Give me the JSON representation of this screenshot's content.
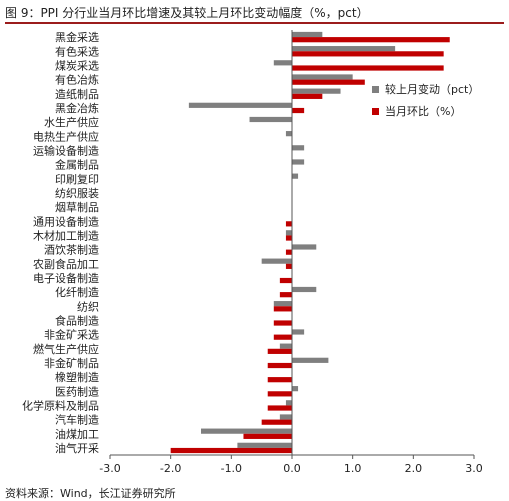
{
  "title": "图 9：PPI 分行业当月环比增速及其较上月环比变动幅度（%，pct）",
  "source": "资料来源：Wind，长江证券研究所",
  "colors": {
    "mom": "#c00000",
    "chg": "#7f7f7f",
    "title_rule": "#9b1c1c"
  },
  "chart_data": {
    "type": "bar",
    "orientation": "horizontal",
    "categories": [
      "黑金采选",
      "有色采选",
      "煤炭采选",
      "有色冶炼",
      "造纸制品",
      "黑金冶炼",
      "水生产供应",
      "电热生产供应",
      "运输设备制造",
      "金属制品",
      "印刷复印",
      "纺织服装",
      "烟草制品",
      "通用设备制造",
      "木材加工制造",
      "酒饮茶制造",
      "农副食品加工",
      "电子设备制造",
      "化纤制造",
      "纺织",
      "食品制造",
      "非金矿采选",
      "燃气生产供应",
      "非金矿制品",
      "橡塑制造",
      "医药制造",
      "化学原料及制品",
      "汽车制造",
      "油煤加工",
      "油气开采"
    ],
    "series": [
      {
        "name": "较上月变动（pct）",
        "values": [
          0.5,
          1.7,
          -0.3,
          1.0,
          0.8,
          -1.7,
          -0.7,
          -0.1,
          0.2,
          0.2,
          0.1,
          0,
          0,
          0,
          -0.1,
          0.4,
          -0.5,
          0,
          0.4,
          -0.3,
          0,
          0.2,
          -0.2,
          0.6,
          0,
          0.1,
          -0.1,
          -0.2,
          -1.5,
          -0.9
        ]
      },
      {
        "name": "当月环比（%）",
        "values": [
          2.6,
          2.5,
          2.5,
          1.2,
          0.5,
          0.2,
          0,
          0,
          0,
          0,
          0,
          0,
          0,
          -0.1,
          -0.1,
          -0.1,
          -0.1,
          -0.2,
          -0.2,
          -0.3,
          -0.3,
          -0.3,
          -0.4,
          -0.4,
          -0.4,
          -0.4,
          -0.4,
          -0.5,
          -0.8,
          -2.0
        ]
      }
    ],
    "xlim": [
      -3.0,
      3.0
    ],
    "xticks": [
      "-3.0",
      "-2.0",
      "-1.0",
      "0.0",
      "1.0",
      "2.0",
      "3.0"
    ],
    "legend_position": "right",
    "grid": false
  }
}
